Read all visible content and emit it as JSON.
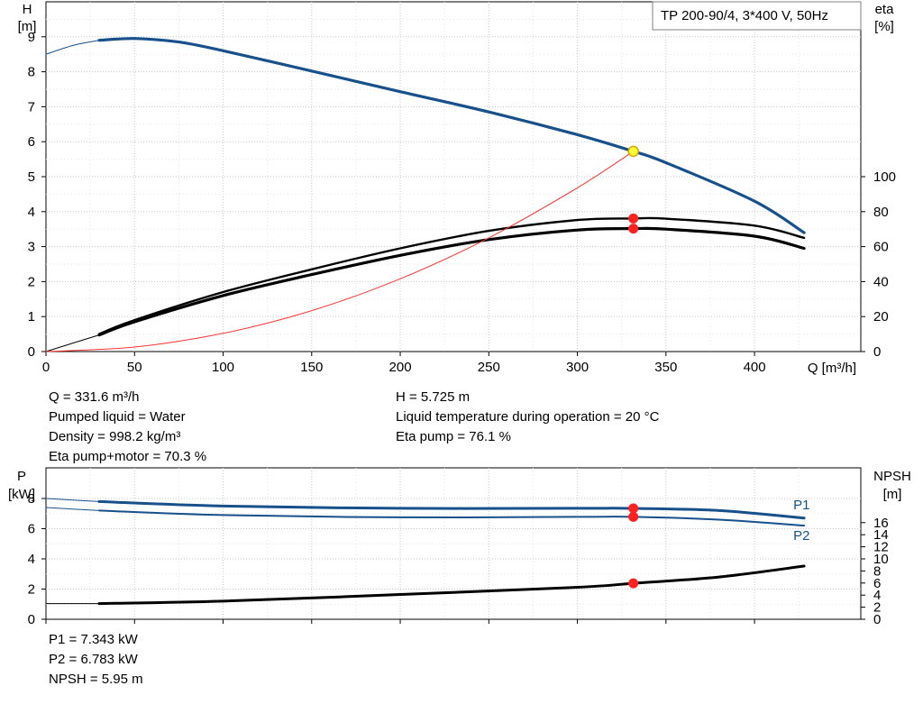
{
  "chart_data": [
    {
      "type": "line",
      "title": "TP 200-90/4, 3*400 V, 50Hz",
      "xlabel": "Q [m³/h]",
      "ylabel_left": [
        "H",
        "[m]"
      ],
      "ylabel_right": [
        "eta",
        "[%]"
      ],
      "xlim": [
        0,
        460
      ],
      "ylim_left": [
        0,
        10
      ],
      "ylim_right": [
        0,
        100
      ],
      "x_ticks": [
        0,
        50,
        100,
        150,
        200,
        250,
        300,
        350,
        400
      ],
      "y_ticks_left": [
        0,
        1,
        2,
        3,
        4,
        5,
        6,
        7,
        8,
        9
      ],
      "y_ticks_right": [
        0,
        20,
        40,
        60,
        80,
        100
      ],
      "grid": true,
      "series": [
        {
          "role": "H",
          "axis": "left",
          "color": "#17508a",
          "x": [
            30,
            50,
            75,
            100,
            150,
            200,
            250,
            300,
            331.6,
            350,
            400,
            428
          ],
          "y": [
            8.9,
            8.95,
            8.85,
            8.6,
            8.02,
            7.43,
            6.85,
            6.2,
            5.725,
            5.4,
            4.3,
            3.4
          ]
        },
        {
          "role": "H-extension",
          "axis": "left",
          "color": "#17508a",
          "x": [
            0,
            15,
            30
          ],
          "y": [
            8.5,
            8.75,
            8.9
          ]
        },
        {
          "role": "eta-pump",
          "axis": "right",
          "color": "#000000",
          "x": [
            30,
            50,
            100,
            150,
            200,
            250,
            300,
            331.6,
            350,
            400,
            428
          ],
          "y": [
            10,
            18,
            34,
            47,
            59,
            69,
            75.2,
            76.1,
            76,
            72,
            65
          ]
        },
        {
          "role": "eta-pump+motor",
          "axis": "right",
          "color": "#000000",
          "x": [
            30,
            50,
            100,
            150,
            200,
            250,
            300,
            331.6,
            350,
            400,
            428
          ],
          "y": [
            9.5,
            17,
            32,
            44,
            55,
            64,
            69.5,
            70.3,
            70,
            66,
            59
          ]
        },
        {
          "role": "eta-extension",
          "axis": "right",
          "color": "#000000",
          "x": [
            0,
            30
          ],
          "y": [
            0,
            9.5
          ]
        },
        {
          "role": "system-curve",
          "axis": "left",
          "color": "#ff3333",
          "x": [
            0,
            50,
            100,
            150,
            200,
            250,
            300,
            331.6
          ],
          "y": [
            0,
            0.13,
            0.52,
            1.17,
            2.08,
            3.25,
            4.68,
            5.725
          ]
        }
      ],
      "markers": [
        {
          "x": 331.6,
          "y": 5.725,
          "axis": "left",
          "style": "duty"
        },
        {
          "x": 331.6,
          "y": 76.1,
          "axis": "right",
          "style": "dot"
        },
        {
          "x": 331.6,
          "y": 70.3,
          "axis": "right",
          "style": "dot"
        }
      ]
    },
    {
      "type": "line",
      "xlim": [
        0,
        460
      ],
      "ylabel_left": [
        "P",
        "[kW]"
      ],
      "ylabel_right": [
        "NPSH",
        "[m]"
      ],
      "ylim_left": [
        0,
        8
      ],
      "ylim_right": [
        0,
        20
      ],
      "y_ticks_left": [
        0,
        2,
        4,
        6,
        8
      ],
      "y_ticks_right": [
        0,
        2,
        4,
        6,
        8,
        10,
        12,
        14,
        16
      ],
      "grid": true,
      "series": [
        {
          "name": "P1",
          "axis": "left",
          "color": "#17508a",
          "x": [
            30,
            100,
            200,
            300,
            331.6,
            380,
            428
          ],
          "y": [
            7.8,
            7.5,
            7.35,
            7.35,
            7.343,
            7.2,
            6.7
          ]
        },
        {
          "name": "P1-extension",
          "axis": "left",
          "color": "#17508a",
          "x": [
            0,
            30
          ],
          "y": [
            8.0,
            7.8
          ]
        },
        {
          "name": "P2",
          "axis": "left",
          "color": "#17508a",
          "x": [
            30,
            100,
            200,
            300,
            331.6,
            380,
            428
          ],
          "y": [
            7.2,
            6.9,
            6.75,
            6.78,
            6.783,
            6.6,
            6.2
          ]
        },
        {
          "name": "P2-extension",
          "axis": "left",
          "color": "#17508a",
          "x": [
            0,
            30
          ],
          "y": [
            7.4,
            7.2
          ]
        },
        {
          "name": "NPSH",
          "axis": "right",
          "color": "#000000",
          "x": [
            30,
            100,
            200,
            300,
            331.6,
            380,
            428
          ],
          "y": [
            2.6,
            3.0,
            4.1,
            5.3,
            5.95,
            7.0,
            8.8
          ]
        },
        {
          "name": "NPSH-extension",
          "axis": "right",
          "color": "#000000",
          "x": [
            0,
            30
          ],
          "y": [
            2.6,
            2.6
          ]
        }
      ],
      "series_labels": [
        "P1",
        "P2"
      ],
      "markers": [
        {
          "x": 331.6,
          "y": 7.343,
          "axis": "left"
        },
        {
          "x": 331.6,
          "y": 6.783,
          "axis": "left"
        },
        {
          "x": 331.6,
          "y": 5.95,
          "axis": "right"
        }
      ]
    }
  ],
  "results_top": {
    "left": [
      "Q = 331.6 m³/h",
      "Pumped liquid = Water",
      "Density = 998.2 kg/m³",
      "Eta pump+motor = 70.3 %"
    ],
    "right": [
      "H = 5.725 m",
      "Liquid temperature during operation = 20 °C",
      "Eta pump = 76.1 %"
    ]
  },
  "results_bottom": [
    "P1 = 7.343 kW",
    "P2 = 6.783 kW",
    "NPSH = 5.95 m"
  ]
}
